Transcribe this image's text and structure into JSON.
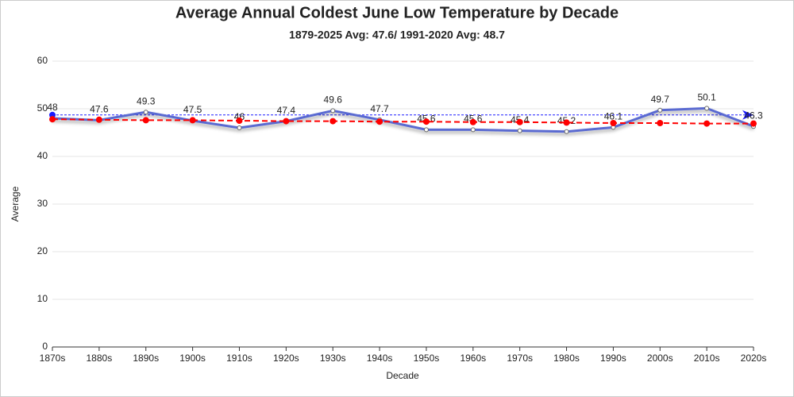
{
  "chart_data": {
    "type": "line",
    "title": "Average Annual Coldest June Low Temperature by Decade",
    "subtitle": "1879-2025 Avg: 47.6/ 1991-2020 Avg: 48.7",
    "x_label": "Decade",
    "y_label": "Average",
    "categories": [
      "1870s",
      "1880s",
      "1890s",
      "1900s",
      "1910s",
      "1920s",
      "1930s",
      "1940s",
      "1950s",
      "1960s",
      "1970s",
      "1980s",
      "1990s",
      "2000s",
      "2010s",
      "2020s"
    ],
    "series": [
      {
        "color": "#5a6bd1",
        "values": [
          48,
          47.6,
          49.3,
          47.5,
          46,
          47.4,
          49.6,
          47.7,
          45.6,
          45.6,
          45.4,
          45.2,
          46.1,
          49.7,
          50.1,
          46.3
        ],
        "data_labels": true
      },
      {
        "color": "#ff0000",
        "dashed": true,
        "values": [
          47.8,
          47.7,
          47.6,
          47.6,
          47.5,
          47.4,
          47.4,
          47.3,
          47.3,
          47.2,
          47.2,
          47.1,
          47.0,
          47.0,
          46.9,
          46.9
        ]
      }
    ],
    "reference_line": {
      "value": 48.7,
      "color": "#1a1aff"
    },
    "ylim": [
      0,
      60
    ],
    "yticks": [
      0,
      10,
      20,
      30,
      40,
      50,
      60
    ],
    "grid": true
  }
}
